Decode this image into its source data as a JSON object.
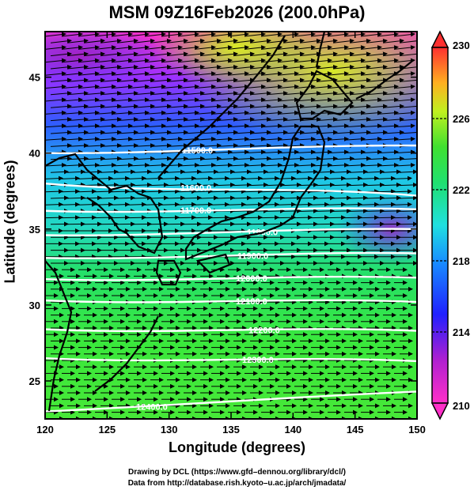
{
  "title": "MSM 09Z16Feb2026 (200.0hPa)",
  "xlabel": "Longitude (degrees)",
  "ylabel": "Latitude  (degrees)",
  "credits": {
    "line1": "Drawing by DCL (https://www.gfd–dennou.org/library/dcl/)",
    "line2": "Data from http://database.rish.kyoto–u.ac.jp/arch/jmadata/"
  },
  "chart_data": {
    "type": "heatmap",
    "xlim": [
      120,
      150
    ],
    "ylim": [
      22.5,
      48
    ],
    "x_ticks": [
      "120",
      "125",
      "130",
      "135",
      "140",
      "145",
      "150"
    ],
    "y_ticks": [
      "25",
      "30",
      "35",
      "40",
      "45"
    ],
    "colorbar": {
      "min": 210,
      "max": 230,
      "ticks": [
        "230",
        "226",
        "222",
        "218",
        "214",
        "210"
      ]
    },
    "contours": [
      {
        "label": "11500.0",
        "lat_at_west": 40.0,
        "lat_at_east": 40.5
      },
      {
        "label": "11600.0",
        "lat_at_west": 38.0,
        "lat_at_east": 37.2
      },
      {
        "label": "11700.0",
        "lat_at_west": 36.2,
        "lat_at_east": 36.3
      },
      {
        "label": "11800.0",
        "lat_at_west": 34.6,
        "lat_at_east": 35.0
      },
      {
        "label": "11900.0",
        "lat_at_west": 33.1,
        "lat_at_east": 33.4
      },
      {
        "label": "12000.0",
        "lat_at_west": 31.7,
        "lat_at_east": 31.8
      },
      {
        "label": "12100.0",
        "lat_at_west": 30.3,
        "lat_at_east": 30.2
      },
      {
        "label": "12200.0",
        "lat_at_west": 28.4,
        "lat_at_east": 28.3
      },
      {
        "label": "12300.0",
        "lat_at_west": 26.5,
        "lat_at_east": 26.3
      },
      {
        "label": "12400.0",
        "lat_at_west": 23.0,
        "lat_at_east": 24.3
      }
    ]
  }
}
